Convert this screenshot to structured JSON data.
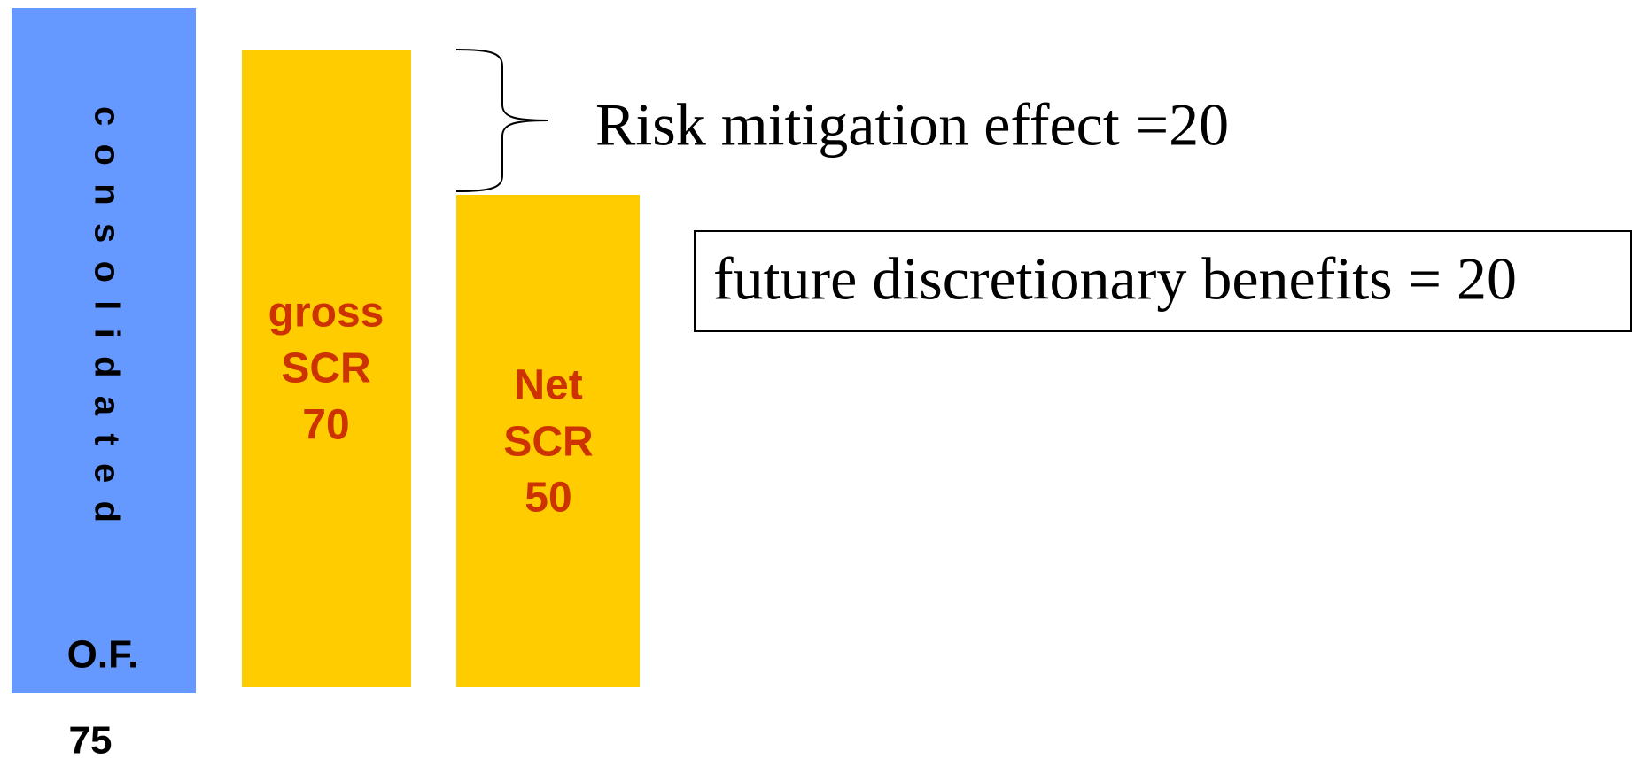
{
  "consolidated": {
    "label": "consolidated",
    "sublabel": "O.F.",
    "value_label": "75"
  },
  "gross": {
    "lines": [
      "gross",
      "SCR",
      "70"
    ]
  },
  "net": {
    "lines": [
      "Net",
      "SCR",
      "50"
    ]
  },
  "annotations": {
    "risk_mitigation": "Risk mitigation effect =20",
    "future_benefits": "future discretionary benefits = 20"
  }
}
